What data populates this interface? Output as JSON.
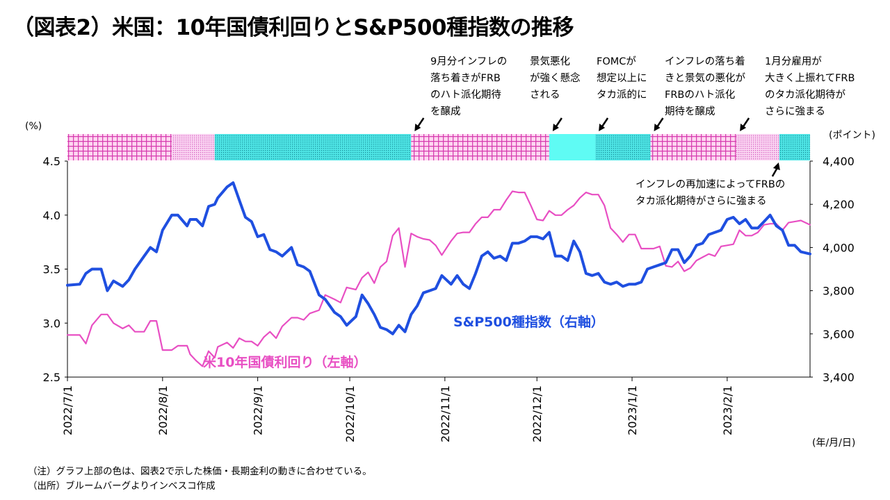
{
  "title": "（図表2）米国：10年国債利回りとS&P500種指数の推移",
  "notes": [
    "（注）グラフ上部の色は、図表2で示した株価・長期金利の動きに合わせている。",
    "（出所）ブルームバーグよりインベスコ作成"
  ],
  "colors": {
    "yield": "#e84fc3",
    "sp500": "#1f4fe0",
    "band_magenta": "#e040b8",
    "band_cyan": "#4ff4f0"
  },
  "chart_data": {
    "type": "line",
    "left_axis": {
      "unit": "(%)",
      "min": 2.5,
      "max": 4.5,
      "ticks": [
        "2.5",
        "3.0",
        "3.5",
        "4.0",
        "4.5"
      ]
    },
    "right_axis": {
      "unit": "(ポイント)",
      "min": 3400,
      "max": 4400,
      "ticks": [
        "3,400",
        "3,600",
        "3,800",
        "4,000",
        "4,200",
        "4,400"
      ]
    },
    "x_axis": {
      "unit": "(年/月/日)",
      "start": "2022/7/1",
      "end": "2023/2/28",
      "ticks": [
        "2022/7/1",
        "2022/8/1",
        "2022/9/1",
        "2022/10/1",
        "2022/11/1",
        "2022/12/1",
        "2023/1/1",
        "2023/2/1"
      ]
    },
    "series": [
      {
        "name": "米10年国債利回り（左軸）",
        "axis": "left",
        "color": "#e84fc3",
        "points": [
          [
            "2022/7/1",
            2.89
          ],
          [
            "2022/7/5",
            2.89
          ],
          [
            "2022/7/7",
            2.81
          ],
          [
            "2022/7/9",
            2.98
          ],
          [
            "2022/7/12",
            3.08
          ],
          [
            "2022/7/14",
            3.08
          ],
          [
            "2022/7/16",
            3.0
          ],
          [
            "2022/7/19",
            2.95
          ],
          [
            "2022/7/21",
            2.98
          ],
          [
            "2022/7/23",
            2.92
          ],
          [
            "2022/7/26",
            2.92
          ],
          [
            "2022/7/28",
            3.02
          ],
          [
            "2022/7/30",
            3.02
          ],
          [
            "2022/8/1",
            2.75
          ],
          [
            "2022/8/4",
            2.75
          ],
          [
            "2022/8/6",
            2.79
          ],
          [
            "2022/8/9",
            2.79
          ],
          [
            "2022/8/10",
            2.71
          ],
          [
            "2022/8/12",
            2.65
          ],
          [
            "2022/8/14",
            2.6
          ],
          [
            "2022/8/16",
            2.74
          ],
          [
            "2022/8/18",
            2.68
          ],
          [
            "2022/8/19",
            2.78
          ],
          [
            "2022/8/22",
            2.82
          ],
          [
            "2022/8/24",
            2.77
          ],
          [
            "2022/8/26",
            2.86
          ],
          [
            "2022/8/28",
            2.83
          ],
          [
            "2022/8/30",
            2.83
          ],
          [
            "2022/9/1",
            2.79
          ],
          [
            "2022/9/3",
            2.87
          ],
          [
            "2022/9/5",
            2.92
          ],
          [
            "2022/9/7",
            2.86
          ],
          [
            "2022/9/9",
            2.97
          ],
          [
            "2022/9/12",
            3.05
          ],
          [
            "2022/9/14",
            3.05
          ],
          [
            "2022/9/16",
            3.03
          ],
          [
            "2022/9/18",
            3.09
          ],
          [
            "2022/9/21",
            3.12
          ],
          [
            "2022/9/23",
            3.26
          ],
          [
            "2022/9/26",
            3.22
          ],
          [
            "2022/9/28",
            3.19
          ],
          [
            "2022/9/30",
            3.33
          ],
          [
            "2022/10/3",
            3.31
          ],
          [
            "2022/10/5",
            3.42
          ],
          [
            "2022/10/7",
            3.47
          ],
          [
            "2022/10/9",
            3.37
          ],
          [
            "2022/10/11",
            3.52
          ],
          [
            "2022/10/13",
            3.57
          ],
          [
            "2022/10/15",
            3.81
          ],
          [
            "2022/10/17",
            3.88
          ],
          [
            "2022/10/19",
            3.52
          ],
          [
            "2022/10/21",
            3.83
          ],
          [
            "2022/10/23",
            3.8
          ],
          [
            "2022/10/25",
            3.78
          ],
          [
            "2022/10/27",
            3.77
          ],
          [
            "2022/10/29",
            3.72
          ],
          [
            "2022/10/31",
            3.63
          ],
          [
            "2022/11/3",
            3.76
          ],
          [
            "2022/11/5",
            3.83
          ],
          [
            "2022/11/7",
            3.84
          ],
          [
            "2022/11/9",
            3.84
          ],
          [
            "2022/11/11",
            3.92
          ],
          [
            "2022/11/13",
            3.98
          ],
          [
            "2022/11/15",
            3.98
          ],
          [
            "2022/11/17",
            4.05
          ],
          [
            "2022/11/19",
            4.05
          ],
          [
            "2022/11/21",
            4.14
          ],
          [
            "2022/11/23",
            4.22
          ],
          [
            "2022/11/25",
            4.21
          ],
          [
            "2022/11/27",
            4.21
          ],
          [
            "2022/11/29",
            4.09
          ],
          [
            "2022/12/1",
            3.96
          ],
          [
            "2022/12/3",
            3.95
          ],
          [
            "2022/12/5",
            4.04
          ],
          [
            "2022/12/7",
            4.0
          ],
          [
            "2022/12/9",
            4.0
          ],
          [
            "2022/12/11",
            4.05
          ],
          [
            "2022/12/13",
            4.09
          ],
          [
            "2022/12/15",
            4.16
          ],
          [
            "2022/12/17",
            4.21
          ],
          [
            "2022/12/19",
            4.19
          ],
          [
            "2022/12/21",
            4.19
          ],
          [
            "2022/12/23",
            4.09
          ],
          [
            "2022/12/25",
            3.88
          ],
          [
            "2022/12/27",
            3.82
          ],
          [
            "2022/12/29",
            3.75
          ],
          [
            "2022/12/31",
            3.82
          ],
          [
            "2023/1/2",
            3.82
          ],
          [
            "2023/1/4",
            3.69
          ],
          [
            "2023/1/6",
            3.69
          ],
          [
            "2023/1/8",
            3.69
          ],
          [
            "2023/1/10",
            3.71
          ],
          [
            "2023/1/12",
            3.53
          ],
          [
            "2023/1/14",
            3.52
          ],
          [
            "2023/1/16",
            3.57
          ],
          [
            "2023/1/18",
            3.48
          ],
          [
            "2023/1/20",
            3.51
          ],
          [
            "2023/1/22",
            3.58
          ],
          [
            "2023/1/24",
            3.61
          ],
          [
            "2023/1/26",
            3.64
          ],
          [
            "2023/1/28",
            3.62
          ],
          [
            "2023/1/30",
            3.71
          ],
          [
            "2023/2/1",
            3.72
          ],
          [
            "2023/2/3",
            3.73
          ],
          [
            "2023/2/5",
            3.86
          ],
          [
            "2023/2/7",
            3.81
          ],
          [
            "2023/2/9",
            3.81
          ],
          [
            "2023/2/11",
            3.84
          ],
          [
            "2023/2/13",
            3.91
          ],
          [
            "2023/2/15",
            3.92
          ],
          [
            "2023/2/17",
            3.92
          ],
          [
            "2023/2/19",
            3.86
          ],
          [
            "2023/2/21",
            3.93
          ],
          [
            "2023/2/23",
            3.94
          ],
          [
            "2023/2/25",
            3.95
          ],
          [
            "2023/2/28",
            3.91
          ]
        ]
      },
      {
        "name": "S&P500種指数（右軸）",
        "axis": "right",
        "color": "#1f4fe0",
        "points": [
          [
            "2022/7/1",
            3825
          ],
          [
            "2022/7/5",
            3830
          ],
          [
            "2022/7/7",
            3880
          ],
          [
            "2022/7/9",
            3900
          ],
          [
            "2022/7/12",
            3900
          ],
          [
            "2022/7/14",
            3800
          ],
          [
            "2022/7/16",
            3845
          ],
          [
            "2022/7/19",
            3820
          ],
          [
            "2022/7/21",
            3850
          ],
          [
            "2022/7/23",
            3900
          ],
          [
            "2022/7/26",
            3960
          ],
          [
            "2022/7/28",
            4000
          ],
          [
            "2022/7/30",
            3980
          ],
          [
            "2022/8/1",
            4080
          ],
          [
            "2022/8/4",
            4150
          ],
          [
            "2022/8/6",
            4150
          ],
          [
            "2022/8/9",
            4100
          ],
          [
            "2022/8/10",
            4130
          ],
          [
            "2022/8/12",
            4130
          ],
          [
            "2022/8/14",
            4100
          ],
          [
            "2022/8/16",
            4190
          ],
          [
            "2022/8/18",
            4200
          ],
          [
            "2022/8/19",
            4230
          ],
          [
            "2022/8/22",
            4280
          ],
          [
            "2022/8/24",
            4300
          ],
          [
            "2022/8/26",
            4220
          ],
          [
            "2022/8/28",
            4140
          ],
          [
            "2022/8/30",
            4120
          ],
          [
            "2022/9/1",
            4050
          ],
          [
            "2022/9/3",
            4060
          ],
          [
            "2022/9/5",
            3990
          ],
          [
            "2022/9/7",
            3980
          ],
          [
            "2022/9/9",
            3960
          ],
          [
            "2022/9/12",
            4000
          ],
          [
            "2022/9/14",
            3920
          ],
          [
            "2022/9/16",
            3910
          ],
          [
            "2022/9/18",
            3890
          ],
          [
            "2022/9/21",
            3780
          ],
          [
            "2022/9/23",
            3760
          ],
          [
            "2022/9/26",
            3700
          ],
          [
            "2022/9/28",
            3680
          ],
          [
            "2022/9/30",
            3640
          ],
          [
            "2022/10/3",
            3680
          ],
          [
            "2022/10/5",
            3780
          ],
          [
            "2022/10/7",
            3740
          ],
          [
            "2022/10/9",
            3690
          ],
          [
            "2022/10/11",
            3630
          ],
          [
            "2022/10/13",
            3620
          ],
          [
            "2022/10/15",
            3600
          ],
          [
            "2022/10/17",
            3640
          ],
          [
            "2022/10/19",
            3610
          ],
          [
            "2022/10/21",
            3690
          ],
          [
            "2022/10/23",
            3730
          ],
          [
            "2022/10/25",
            3790
          ],
          [
            "2022/10/27",
            3800
          ],
          [
            "2022/10/29",
            3810
          ],
          [
            "2022/10/31",
            3870
          ],
          [
            "2022/11/3",
            3830
          ],
          [
            "2022/11/5",
            3870
          ],
          [
            "2022/11/7",
            3830
          ],
          [
            "2022/11/9",
            3810
          ],
          [
            "2022/11/11",
            3880
          ],
          [
            "2022/11/13",
            3960
          ],
          [
            "2022/11/15",
            3980
          ],
          [
            "2022/11/17",
            3950
          ],
          [
            "2022/11/19",
            3960
          ],
          [
            "2022/11/21",
            3940
          ],
          [
            "2022/11/23",
            4020
          ],
          [
            "2022/11/25",
            4020
          ],
          [
            "2022/11/27",
            4030
          ],
          [
            "2022/11/29",
            4050
          ],
          [
            "2022/12/1",
            4050
          ],
          [
            "2022/12/3",
            4040
          ],
          [
            "2022/12/5",
            4070
          ],
          [
            "2022/12/7",
            3960
          ],
          [
            "2022/12/9",
            3960
          ],
          [
            "2022/12/11",
            3940
          ],
          [
            "2022/12/13",
            4030
          ],
          [
            "2022/12/15",
            3980
          ],
          [
            "2022/12/17",
            3880
          ],
          [
            "2022/12/19",
            3870
          ],
          [
            "2022/12/21",
            3880
          ],
          [
            "2022/12/23",
            3840
          ],
          [
            "2022/12/25",
            3830
          ],
          [
            "2022/12/27",
            3840
          ],
          [
            "2022/12/29",
            3820
          ],
          [
            "2022/12/31",
            3830
          ],
          [
            "2023/1/2",
            3830
          ],
          [
            "2023/1/4",
            3840
          ],
          [
            "2023/1/6",
            3900
          ],
          [
            "2023/1/8",
            3910
          ],
          [
            "2023/1/10",
            3920
          ],
          [
            "2023/1/12",
            3930
          ],
          [
            "2023/1/14",
            3990
          ],
          [
            "2023/1/16",
            3990
          ],
          [
            "2023/1/18",
            3930
          ],
          [
            "2023/1/20",
            3960
          ],
          [
            "2023/1/22",
            4010
          ],
          [
            "2023/1/24",
            4020
          ],
          [
            "2023/1/26",
            4060
          ],
          [
            "2023/1/28",
            4070
          ],
          [
            "2023/1/30",
            4080
          ],
          [
            "2023/2/1",
            4130
          ],
          [
            "2023/2/3",
            4140
          ],
          [
            "2023/2/5",
            4110
          ],
          [
            "2023/2/7",
            4130
          ],
          [
            "2023/2/9",
            4090
          ],
          [
            "2023/2/11",
            4090
          ],
          [
            "2023/2/13",
            4120
          ],
          [
            "2023/2/15",
            4150
          ],
          [
            "2023/2/17",
            4100
          ],
          [
            "2023/2/19",
            4080
          ],
          [
            "2023/2/21",
            4010
          ],
          [
            "2023/2/23",
            4010
          ],
          [
            "2023/2/25",
            3980
          ],
          [
            "2023/2/28",
            3970
          ]
        ]
      }
    ],
    "bands": [
      {
        "start": "2022/7/1",
        "end": "2022/8/4",
        "pattern": "magenta-grid"
      },
      {
        "start": "2022/8/4",
        "end": "2022/8/18",
        "pattern": "pink-dots"
      },
      {
        "start": "2022/8/18",
        "end": "2022/10/21",
        "pattern": "cyan-dots"
      },
      {
        "start": "2022/10/21",
        "end": "2022/12/5",
        "pattern": "magenta-grid"
      },
      {
        "start": "2022/12/5",
        "end": "2022/12/20",
        "pattern": "cyan-solid"
      },
      {
        "start": "2022/12/20",
        "end": "2023/1/7",
        "pattern": "cyan-dots"
      },
      {
        "start": "2023/1/7",
        "end": "2023/2/4",
        "pattern": "magenta-grid"
      },
      {
        "start": "2023/2/4",
        "end": "2023/2/18",
        "pattern": "pink-dots"
      },
      {
        "start": "2023/2/18",
        "end": "2023/2/28",
        "pattern": "cyan-dots"
      }
    ],
    "annotations": [
      {
        "date": "2022/10/21",
        "lines": [
          "9月分インフレの",
          "落ち着きがFRB",
          "のハト派化期待",
          "を醸成"
        ]
      },
      {
        "date": "2022/12/5",
        "lines": [
          "景気悪化",
          "が強く懸念",
          "される"
        ]
      },
      {
        "date": "2022/12/20",
        "lines": [
          "FOMCが",
          "想定以上に",
          "タカ派的に"
        ]
      },
      {
        "date": "2023/1/7",
        "lines": [
          "インフレの落ち着",
          "きと景気の悪化が",
          "FRBのハト派化",
          "期待を醸成"
        ]
      },
      {
        "date": "2023/2/4",
        "lines": [
          "1月分雇用が",
          "大きく上振れてFRB",
          "のタカ派化期待が",
          "さらに強まる"
        ]
      },
      {
        "date": "2023/2/18",
        "lines": [
          "インフレの再加速によってFRBの",
          "タカ派化期待がさらに強まる"
        ]
      }
    ]
  }
}
